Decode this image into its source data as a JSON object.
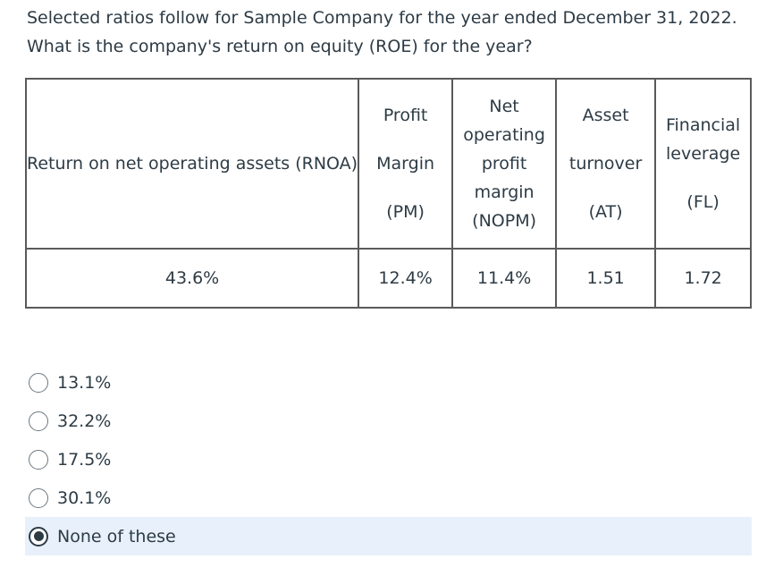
{
  "question": {
    "line1": "Selected ratios follow for Sample Company for the year ended December 31, 2022.",
    "line2": "What is the company's return on equity (ROE) for the year?"
  },
  "table": {
    "headers": {
      "rnoa": "Return on net operating assets (RNOA)",
      "pm": [
        "Profit",
        "Margin",
        "(PM)"
      ],
      "nopm": [
        "Net",
        "operating",
        "profit",
        "margin",
        "(NOPM)"
      ],
      "at": [
        "Asset",
        "turnover",
        "(AT)"
      ],
      "fl": [
        "Financial",
        "leverage",
        "(FL)"
      ]
    },
    "values": {
      "rnoa": "43.6%",
      "pm": "12.4%",
      "nopm": "11.4%",
      "at": "1.51",
      "fl": "1.72"
    }
  },
  "options": [
    {
      "label": "13.1%",
      "selected": false
    },
    {
      "label": "32.2%",
      "selected": false
    },
    {
      "label": "17.5%",
      "selected": false
    },
    {
      "label": "30.1%",
      "selected": false
    },
    {
      "label": "None of these",
      "selected": true
    }
  ],
  "colors": {
    "text": "#2d3b45",
    "selected_bg": "#e8f1fb",
    "border": "#5a5a5a"
  }
}
